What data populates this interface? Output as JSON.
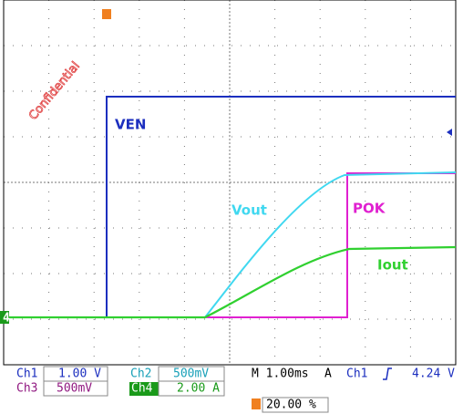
{
  "watermark": "Confidential",
  "trace_labels": {
    "ven": "VEN",
    "vout": "Vout",
    "pok": "POK",
    "iout": "Iout"
  },
  "ground_marker": "4",
  "readout": {
    "row1": {
      "ch1": "Ch1",
      "ch1_scale": "1.00 V",
      "ch2": "Ch2",
      "ch2_scale": "500mV",
      "timebase": "M 1.00ms",
      "trigger_mode": "A",
      "trigger_source": "Ch1",
      "trigger_level": "4.24 V"
    },
    "row2": {
      "ch3": "Ch3",
      "ch3_scale": "500mV",
      "ch4": "Ch4",
      "ch4_scale": "2.00 A"
    },
    "row3": {
      "trigger_position": "20.00 %"
    }
  }
}
